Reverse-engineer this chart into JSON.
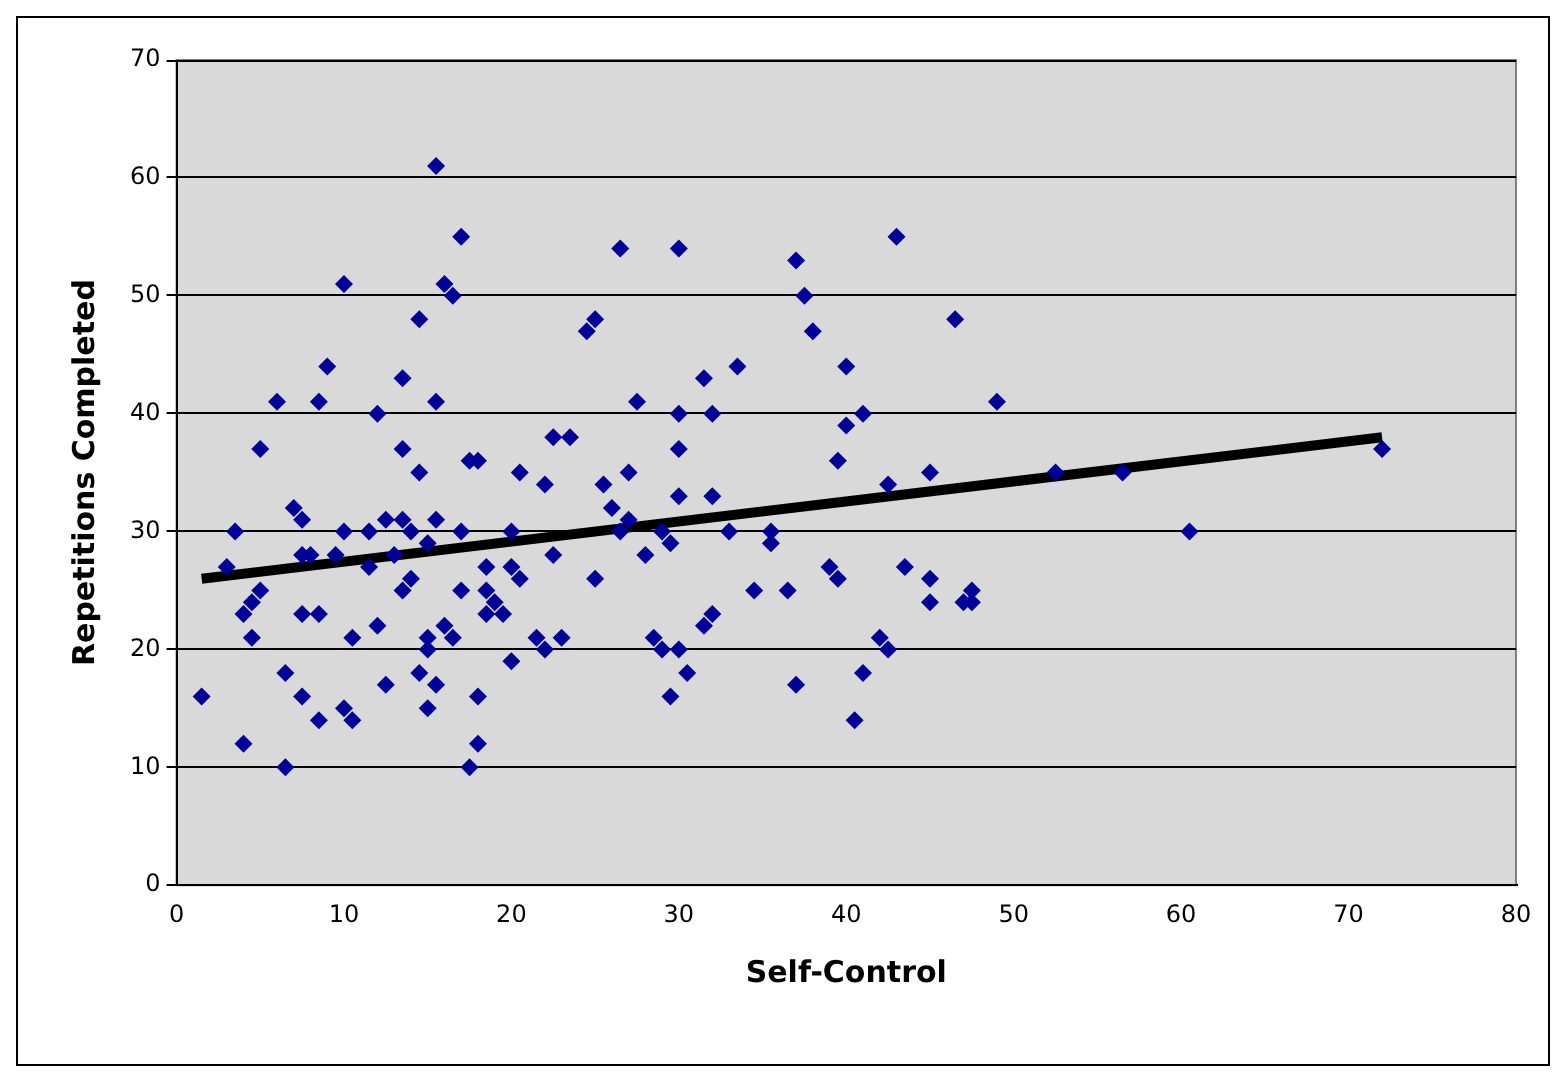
{
  "chart_data": {
    "type": "scatter",
    "xlabel": "Self-Control",
    "ylabel": "Repetitions Completed",
    "xlim": [
      0,
      80
    ],
    "xticks": [
      0,
      10,
      20,
      30,
      40,
      50,
      60,
      70,
      80
    ],
    "ylim": [
      0,
      70
    ],
    "yticks": [
      0,
      10,
      20,
      30,
      40,
      50,
      60,
      70
    ],
    "grid": "y",
    "legend": false,
    "marker": "diamond",
    "series": [
      {
        "type": "scatter",
        "color": "#000099",
        "x": [
          1.5,
          3,
          3.5,
          4,
          4,
          4.5,
          4.5,
          5,
          5,
          6,
          6.5,
          6.5,
          7,
          7.5,
          7.5,
          7.5,
          7.5,
          8,
          8.5,
          8.5,
          8.5,
          9,
          9.5,
          10,
          10,
          10,
          10.5,
          10.5,
          11.5,
          11.5,
          12,
          12,
          12.5,
          12.5,
          13,
          13.5,
          13.5,
          13.5,
          13.5,
          14,
          14,
          14.5,
          14.5,
          14.5,
          15,
          15,
          15,
          15,
          15.5,
          15.5,
          15.5,
          15.5,
          16,
          16,
          16.5,
          16.5,
          17,
          17,
          17,
          17.5,
          17.5,
          18,
          18,
          18,
          18.5,
          18.5,
          18.5,
          19,
          19.5,
          20,
          20,
          20,
          20.5,
          20.5,
          21.5,
          22,
          22,
          22.5,
          22.5,
          23,
          23.5,
          24.5,
          25,
          25,
          25.5,
          26,
          26.5,
          26.5,
          27,
          27,
          27.5,
          28,
          28.5,
          29,
          29,
          29.5,
          29.5,
          30,
          30,
          30,
          30,
          30,
          30.5,
          31.5,
          31.5,
          32,
          32,
          32,
          33,
          33.5,
          34.5,
          35.5,
          35.5,
          36.5,
          37,
          37,
          37.5,
          38,
          39,
          39.5,
          39.5,
          40,
          40,
          40.5,
          41,
          41,
          42,
          42.5,
          42.5,
          43,
          43.5,
          45,
          45,
          45,
          46.5,
          47,
          47.5,
          47.5,
          49,
          52.5,
          56.5,
          60.5,
          72
        ],
        "values": [
          16,
          27,
          30,
          23,
          12,
          24,
          21,
          25,
          37,
          41,
          18,
          10,
          32,
          31,
          23,
          28,
          16,
          28,
          23,
          14,
          41,
          44,
          28,
          51,
          30,
          15,
          14,
          21,
          30,
          27,
          40,
          22,
          17,
          31,
          28,
          37,
          43,
          31,
          25,
          26,
          30,
          48,
          35,
          18,
          20,
          21,
          15,
          29,
          61,
          41,
          31,
          17,
          51,
          22,
          50,
          21,
          55,
          30,
          25,
          36,
          10,
          36,
          16,
          12,
          23,
          25,
          27,
          24,
          23,
          30,
          27,
          19,
          35,
          26,
          21,
          20,
          34,
          38,
          28,
          21,
          38,
          47,
          48,
          26,
          34,
          32,
          30,
          54,
          35,
          31,
          41,
          28,
          21,
          20,
          30,
          16,
          29,
          54,
          40,
          37,
          33,
          20,
          18,
          22,
          43,
          40,
          23,
          33,
          30,
          44,
          25,
          30,
          29,
          25,
          53,
          17,
          50,
          47,
          27,
          26,
          36,
          44,
          39,
          14,
          40,
          18,
          21,
          34,
          20,
          55,
          27,
          35,
          26,
          24,
          48,
          24,
          25,
          24,
          41,
          35,
          35,
          30,
          37
        ]
      },
      {
        "type": "line",
        "color": "#000000",
        "marker": "none",
        "x": [
          1.5,
          72
        ],
        "values": [
          26,
          38
        ]
      }
    ]
  }
}
